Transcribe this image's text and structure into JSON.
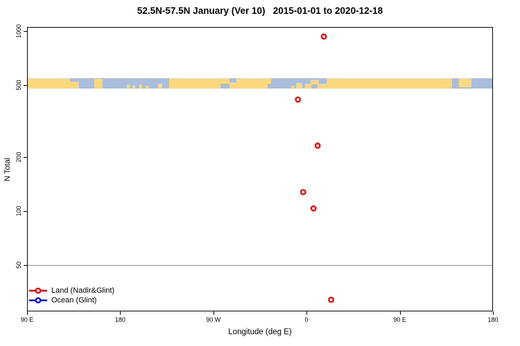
{
  "title": "52.5N-57.5N January (Ver 10)   2015-01-01 to 2020-12-18",
  "colors": {
    "land": "#FBD77E",
    "ocean": "#A8BEDC",
    "land_series": "#FF0000",
    "ocean_series": "#0000FF",
    "reference_line": "#8C8C8C",
    "axis": "#000000"
  },
  "legend": {
    "items": [
      {
        "label": "Land (Nadir&Glint)",
        "color": "#FF0000"
      },
      {
        "label": "Ocean (Glint)",
        "color": "#0000FF"
      }
    ]
  },
  "chart_data": {
    "type": "scatter",
    "title": "52.5N-57.5N January (Ver 10)   2015-01-01 to 2020-12-18",
    "xlabel": "Longitude (deg E)",
    "ylabel": "N Total",
    "y_scale": "log10",
    "y_ticks": [
      "1000",
      "500",
      "200",
      "100",
      "50"
    ],
    "y_tick_values": [
      1000,
      500,
      200,
      100,
      50
    ],
    "reference_line_value": 50,
    "x_ticks": [
      {
        "deg": -270,
        "label": "90 E"
      },
      {
        "deg": -180,
        "label": "180"
      },
      {
        "deg": -90,
        "label": "90 W"
      },
      {
        "deg": 0,
        "label": "0"
      },
      {
        "deg": 90,
        "label": "90 E"
      },
      {
        "deg": 180,
        "label": "180"
      }
    ],
    "series": [
      {
        "name": "Land (Nadir&Glint)",
        "color": "#FF0000",
        "points": [
          {
            "lon": 17,
            "n": 930
          },
          {
            "lon": -8,
            "n": 415
          },
          {
            "lon": 11,
            "n": 230
          },
          {
            "lon": -3,
            "n": 127
          },
          {
            "lon": 7,
            "n": 103
          },
          {
            "lon": 24,
            "n": 32
          }
        ]
      },
      {
        "name": "Ocean (Glint)",
        "color": "#0000FF",
        "points": []
      }
    ],
    "map_strip": {
      "description": "land/ocean mask band 52.5N-57.5N across longitude axis",
      "land_segments": [
        {
          "x0": 0.0,
          "x1": 0.091,
          "y0": 0.0,
          "y1": 1
        },
        {
          "x0": 0.091,
          "x1": 0.11,
          "y0": 0.35,
          "y1": 1
        },
        {
          "x0": 0.143,
          "x1": 0.161,
          "y0": 0.05,
          "y1": 1
        },
        {
          "x0": 0.213,
          "x1": 0.219,
          "y0": 0.6,
          "y1": 1
        },
        {
          "x0": 0.226,
          "x1": 0.232,
          "y0": 0.65,
          "y1": 1
        },
        {
          "x0": 0.24,
          "x1": 0.246,
          "y0": 0.6,
          "y1": 1
        },
        {
          "x0": 0.253,
          "x1": 0.259,
          "y0": 0.7,
          "y1": 1
        },
        {
          "x0": 0.281,
          "x1": 0.289,
          "y0": 0.55,
          "y1": 1
        },
        {
          "x0": 0.304,
          "x1": 0.415,
          "y0": 0.0,
          "y1": 1
        },
        {
          "x0": 0.415,
          "x1": 0.435,
          "y0": 0.0,
          "y1": 0.55
        },
        {
          "x0": 0.435,
          "x1": 0.449,
          "y0": 0.4,
          "y1": 1
        },
        {
          "x0": 0.449,
          "x1": 0.516,
          "y0": 0.0,
          "y1": 1
        },
        {
          "x0": 0.516,
          "x1": 0.524,
          "y0": 0.0,
          "y1": 0.5
        },
        {
          "x0": 0.567,
          "x1": 0.574,
          "y0": 0.7,
          "y1": 1
        },
        {
          "x0": 0.577,
          "x1": 0.591,
          "y0": 0.45,
          "y1": 1
        },
        {
          "x0": 0.597,
          "x1": 0.61,
          "y0": 0.55,
          "y1": 1
        },
        {
          "x0": 0.609,
          "x1": 0.627,
          "y0": 0.15,
          "y1": 0.6
        },
        {
          "x0": 0.624,
          "x1": 0.644,
          "y0": 0.5,
          "y1": 1
        },
        {
          "x0": 0.644,
          "x1": 0.914,
          "y0": 0.0,
          "y1": 1
        },
        {
          "x0": 0.929,
          "x1": 0.955,
          "y0": 0.0,
          "y1": 0.85
        }
      ]
    }
  }
}
